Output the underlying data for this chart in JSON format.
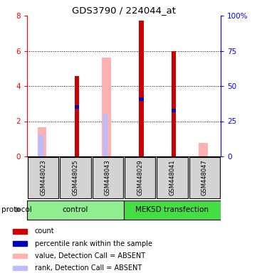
{
  "title": "GDS3790 / 224044_at",
  "samples": [
    "GSM448023",
    "GSM448025",
    "GSM448043",
    "GSM448029",
    "GSM448041",
    "GSM448047"
  ],
  "groups": [
    "control",
    "control",
    "control",
    "MEK5D transfection",
    "MEK5D transfection",
    "MEK5D transfection"
  ],
  "red_values": [
    0.0,
    4.55,
    0.0,
    7.7,
    6.0,
    0.0
  ],
  "pink_values": [
    1.65,
    0.0,
    5.6,
    0.0,
    0.0,
    0.75
  ],
  "blue_values": [
    0.0,
    2.8,
    0.0,
    3.25,
    2.6,
    0.0
  ],
  "lightblue_values": [
    1.2,
    0.0,
    2.42,
    0.0,
    0.0,
    0.0
  ],
  "ylim": [
    0,
    8
  ],
  "yticks_left": [
    0,
    2,
    4,
    6,
    8
  ],
  "yticks_right_vals": [
    0,
    25,
    50,
    75,
    100
  ],
  "yticks_right_labels": [
    "0",
    "25",
    "50",
    "75",
    "100%"
  ],
  "red_color": "#CC0000",
  "pink_color": "#FFB0B0",
  "blue_color": "#0000BB",
  "lightblue_color": "#BBBBFF",
  "control_color": "#90EE90",
  "mek_color": "#44DD44",
  "sample_box_color": "#D3D3D3",
  "legend_items": [
    {
      "label": "count",
      "color": "#CC0000"
    },
    {
      "label": "percentile rank within the sample",
      "color": "#0000BB"
    },
    {
      "label": "value, Detection Call = ABSENT",
      "color": "#FFB0B0"
    },
    {
      "label": "rank, Detection Call = ABSENT",
      "color": "#BBBBFF"
    }
  ]
}
